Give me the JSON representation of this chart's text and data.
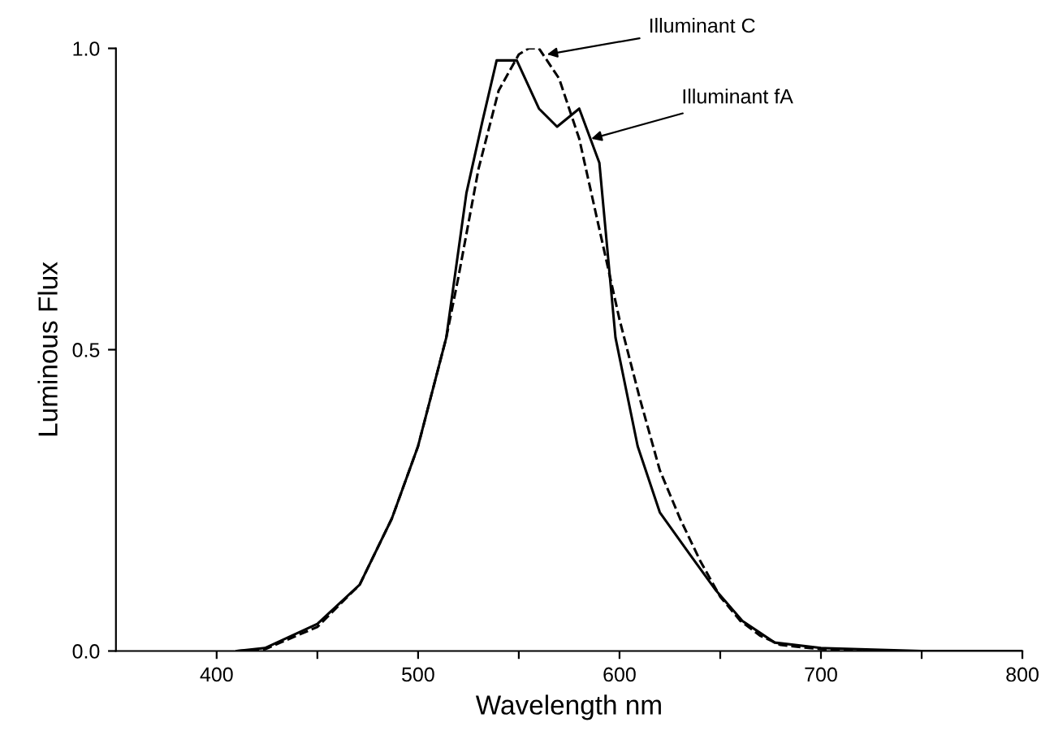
{
  "chart_data": {
    "type": "line",
    "xlabel": "Wavelength nm",
    "ylabel": "Luminous Flux",
    "xlim": [
      350,
      800
    ],
    "ylim": [
      0,
      1
    ],
    "xticks": [
      400,
      {
        "value": 450,
        "label": null
      },
      500,
      {
        "value": 550,
        "label": null
      },
      600,
      {
        "value": 650,
        "label": null
      },
      700,
      {
        "value": 750,
        "label": null
      },
      800
    ],
    "yticks": [
      {
        "value": 0,
        "label": "0.0"
      },
      {
        "value": 0.5,
        "label": "0.5"
      },
      {
        "value": 1,
        "label": "1.0"
      }
    ],
    "grid": false,
    "legend": false,
    "marker": "none",
    "series": [
      {
        "color": "#000000",
        "line_style": "solid",
        "x": [
          410,
          424,
          450,
          471,
          487,
          500,
          514,
          524,
          532,
          539,
          549,
          560,
          569,
          580,
          590,
          598,
          609,
          620,
          635,
          648,
          661,
          677,
          700,
          750,
          800
        ],
        "values": [
          0,
          0.005,
          0.045,
          0.11,
          0.22,
          0.34,
          0.52,
          0.76,
          0.88,
          0.98,
          0.98,
          0.9,
          0.87,
          0.9,
          0.81,
          0.52,
          0.34,
          0.23,
          0.16,
          0.1,
          0.05,
          0.014,
          0.005,
          0,
          0
        ]
      },
      {
        "color": "#000000",
        "line_style": "dashed",
        "x": [
          410,
          424,
          450,
          471,
          487,
          500,
          514,
          520,
          530,
          540,
          550,
          555,
          560,
          570,
          580,
          590,
          600,
          610,
          620,
          630,
          640,
          650,
          660,
          670,
          680,
          700,
          720
        ],
        "values": [
          0,
          0.003,
          0.04,
          0.11,
          0.22,
          0.34,
          0.52,
          0.62,
          0.8,
          0.93,
          0.99,
          1.0,
          1.0,
          0.95,
          0.85,
          0.7,
          0.55,
          0.42,
          0.3,
          0.22,
          0.15,
          0.09,
          0.05,
          0.025,
          0.01,
          0.003,
          0
        ]
      }
    ],
    "annotations": [
      {
        "text": "Illuminant C",
        "x": 564,
        "y": 0.99
      },
      {
        "text": "Illuminant fA",
        "x": 586,
        "y": 0.85
      }
    ]
  }
}
